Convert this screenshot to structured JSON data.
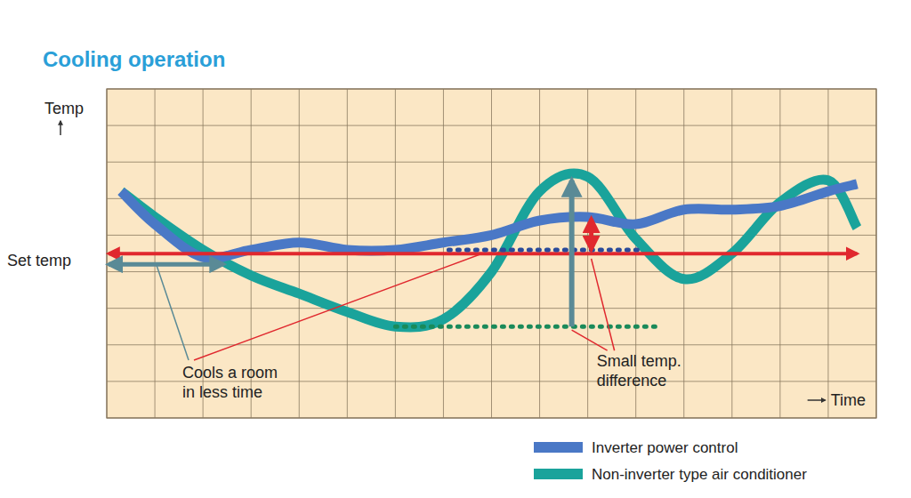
{
  "chart_data": {
    "type": "line",
    "title": "Cooling operation",
    "xlabel": "Time",
    "ylabel": "Temp",
    "x": [
      0.3,
      1,
      2,
      3,
      4,
      5,
      6,
      7,
      8,
      9,
      10,
      11,
      12,
      13,
      14,
      15,
      15.6
    ],
    "series": [
      {
        "name": "Inverter power control",
        "color": "#4a78c6",
        "values": [
          6.2,
          5.3,
          4.4,
          4.6,
          4.8,
          4.6,
          4.6,
          4.8,
          5.0,
          5.4,
          5.5,
          5.3,
          5.7,
          5.7,
          5.8,
          6.2,
          6.4
        ]
      },
      {
        "name": "Non-inverter type air conditioner",
        "color": "#1aa39b",
        "values": [
          6.2,
          5.5,
          4.6,
          3.9,
          3.4,
          2.9,
          2.5,
          2.7,
          4.0,
          6.2,
          6.6,
          4.9,
          3.8,
          4.5,
          5.9,
          6.5,
          5.2
        ]
      }
    ],
    "annotations": [
      {
        "text": "Set temp",
        "y": 4.3
      },
      {
        "text": "Cools a room in less time"
      },
      {
        "text": "Small temp. difference"
      }
    ],
    "xlim": [
      0,
      16
    ],
    "ylim": [
      0,
      9
    ],
    "xticks": [
      0,
      1,
      2,
      3,
      4,
      5,
      6,
      7,
      8,
      9,
      10,
      11,
      12,
      13,
      14,
      15,
      16
    ],
    "yticks": [
      0,
      1,
      2,
      3,
      4,
      5,
      6,
      7,
      8,
      9
    ],
    "grid": true,
    "tick_labels": false,
    "legend": "bottom-right"
  }
}
